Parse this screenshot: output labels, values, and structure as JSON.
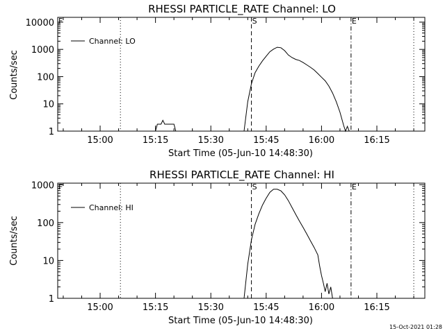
{
  "footer_timestamp": "15-Oct-2021 01:28",
  "chart_data": [
    {
      "type": "line",
      "title": "RHESSI PARTICLE_RATE Channel: LO",
      "xlabel": "Start Time (05-Jun-10 14:48:30)",
      "ylabel": "Counts/sec",
      "yscale": "log",
      "grid": false,
      "legend_position": "top-left",
      "x_ticks": [
        "15:00",
        "15:15",
        "15:30",
        "15:45",
        "16:00",
        "16:15"
      ],
      "y_ticks": [
        "1",
        "10",
        "100",
        "1000",
        "10000"
      ],
      "xlim": [
        "14:48:30",
        "16:28:00"
      ],
      "ylim": [
        1,
        15000
      ],
      "markers": [
        {
          "label": "F",
          "time": "14:48:30",
          "style": "dotted"
        },
        {
          "label": "",
          "time": "15:05:30",
          "style": "dotted"
        },
        {
          "label": "S",
          "time": "15:41:00",
          "style": "dashed"
        },
        {
          "label": "E",
          "time": "16:08:00",
          "style": "dashdot"
        },
        {
          "label": "",
          "time": "16:25:00",
          "style": "dotted"
        }
      ],
      "series": [
        {
          "name": "Channel: LO",
          "x": [
            "15:15:00",
            "15:15:30",
            "15:16:30",
            "15:17:00",
            "15:17:30",
            "15:18:00",
            "15:19:30",
            "15:20:00",
            "15:20:30",
            "15:39:00",
            "15:40:00",
            "15:41:00",
            "15:42:00",
            "15:43:00",
            "15:44:00",
            "15:45:00",
            "15:46:00",
            "15:47:00",
            "15:48:00",
            "15:49:00",
            "15:50:00",
            "15:51:00",
            "15:52:00",
            "15:53:00",
            "15:54:00",
            "15:55:00",
            "15:56:00",
            "15:57:00",
            "15:58:00",
            "15:59:00",
            "16:00:00",
            "16:01:00",
            "16:02:00",
            "16:03:00",
            "16:04:00",
            "16:05:00",
            "16:06:00",
            "16:06:30",
            "16:07:00",
            "16:07:30",
            "16:08:00"
          ],
          "y": [
            1,
            1.8,
            1.8,
            2.5,
            1.8,
            1.8,
            1.8,
            1.8,
            1,
            1,
            12,
            55,
            140,
            240,
            380,
            560,
            820,
            1020,
            1200,
            1150,
            900,
            620,
            500,
            430,
            390,
            330,
            270,
            220,
            175,
            130,
            95,
            70,
            45,
            25,
            12,
            5,
            1.6,
            1,
            1.5,
            1,
            1
          ]
        }
      ]
    },
    {
      "type": "line",
      "title": "RHESSI PARTICLE_RATE Channel: HI",
      "xlabel": "Start Time (05-Jun-10 14:48:30)",
      "ylabel": "Counts/sec",
      "yscale": "log",
      "grid": false,
      "legend_position": "top-left",
      "x_ticks": [
        "15:00",
        "15:15",
        "15:30",
        "15:45",
        "16:00",
        "16:15"
      ],
      "y_ticks": [
        "1",
        "10",
        "100",
        "1000"
      ],
      "xlim": [
        "14:48:30",
        "16:28:00"
      ],
      "ylim": [
        1,
        1100
      ],
      "markers": [
        {
          "label": "F",
          "time": "14:48:30",
          "style": "dotted"
        },
        {
          "label": "",
          "time": "15:05:30",
          "style": "dotted"
        },
        {
          "label": "S",
          "time": "15:41:00",
          "style": "dashed"
        },
        {
          "label": "E",
          "time": "16:08:00",
          "style": "dashdot"
        },
        {
          "label": "",
          "time": "16:25:00",
          "style": "dotted"
        }
      ],
      "series": [
        {
          "name": "Channel: HI",
          "x": [
            "15:39:00",
            "15:40:00",
            "15:41:00",
            "15:42:00",
            "15:43:00",
            "15:44:00",
            "15:45:00",
            "15:46:00",
            "15:47:00",
            "15:48:00",
            "15:49:00",
            "15:50:00",
            "15:51:00",
            "15:52:00",
            "15:53:00",
            "15:54:00",
            "15:55:00",
            "15:56:00",
            "15:57:00",
            "15:58:00",
            "15:59:00",
            "15:59:30",
            "16:00:00",
            "16:00:30",
            "16:01:00",
            "16:01:30",
            "16:02:00",
            "16:02:30",
            "16:03:00"
          ],
          "y": [
            1,
            8,
            35,
            90,
            170,
            290,
            440,
            630,
            760,
            760,
            690,
            540,
            380,
            250,
            165,
            110,
            75,
            50,
            33,
            22,
            14,
            7,
            4,
            2.5,
            1.5,
            2.5,
            1.3,
            2,
            1
          ]
        }
      ]
    }
  ]
}
